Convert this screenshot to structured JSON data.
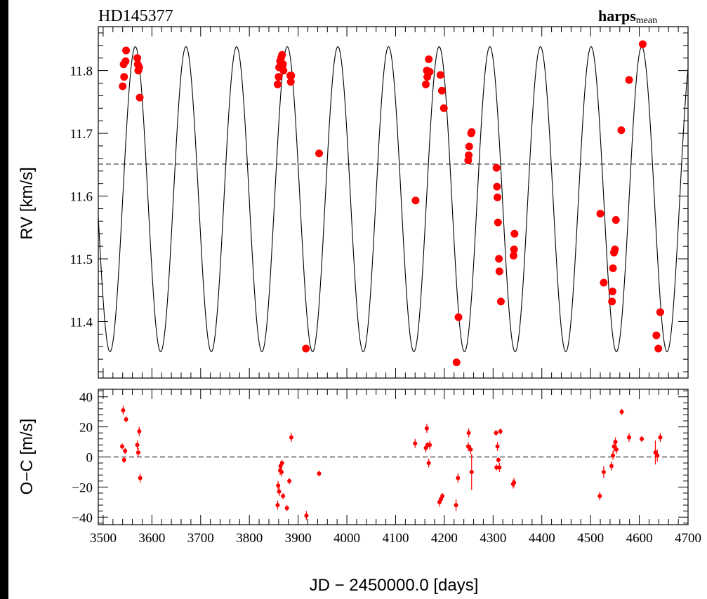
{
  "chart_data": [
    {
      "type": "scatter",
      "panel": "rv",
      "title": "HD145377",
      "label_right_main": "harps",
      "label_right_sub": "mean",
      "ylabel": "RV [km/s]",
      "xlim": [
        3490,
        4700
      ],
      "ylim": [
        11.31,
        11.87
      ],
      "yticks": [
        11.4,
        11.5,
        11.6,
        11.7,
        11.8
      ],
      "mean_line": 11.651,
      "model": {
        "period": 103.9,
        "center": 11.595,
        "semi_amplitude": 0.243,
        "peak_jd": 4605
      },
      "series": [
        {
          "points": [
            [
              3540,
              11.775
            ],
            [
              3542,
              11.81
            ],
            [
              3543,
              11.79
            ],
            [
              3546,
              11.815
            ],
            [
              3547,
              11.832
            ],
            [
              3570,
              11.82
            ],
            [
              3571,
              11.81
            ],
            [
              3572,
              11.8
            ],
            [
              3574,
              11.805
            ],
            [
              3575,
              11.757
            ],
            [
              3858,
              11.778
            ],
            [
              3860,
              11.79
            ],
            [
              3861,
              11.805
            ],
            [
              3863,
              11.815
            ],
            [
              3865,
              11.82
            ],
            [
              3867,
              11.825
            ],
            [
              3869,
              11.81
            ],
            [
              3870,
              11.8
            ],
            [
              3884,
              11.792
            ],
            [
              3885,
              11.782
            ],
            [
              3886,
              11.792
            ],
            [
              3916,
              11.357
            ],
            [
              3943,
              11.668
            ],
            [
              4141,
              11.593
            ],
            [
              4162,
              11.778
            ],
            [
              4164,
              11.8
            ],
            [
              4165,
              11.79
            ],
            [
              4168,
              11.818
            ],
            [
              4170,
              11.798
            ],
            [
              4192,
              11.793
            ],
            [
              4195,
              11.768
            ],
            [
              4199,
              11.74
            ],
            [
              4225,
              11.335
            ],
            [
              4229,
              11.407
            ],
            [
              4249,
              11.657
            ],
            [
              4250,
              11.665
            ],
            [
              4251,
              11.679
            ],
            [
              4255,
              11.7
            ],
            [
              4256,
              11.702
            ],
            [
              4307,
              11.645
            ],
            [
              4308,
              11.615
            ],
            [
              4309,
              11.598
            ],
            [
              4310,
              11.558
            ],
            [
              4312,
              11.5
            ],
            [
              4313,
              11.48
            ],
            [
              4316,
              11.432
            ],
            [
              4342,
              11.505
            ],
            [
              4343,
              11.515
            ],
            [
              4344,
              11.54
            ],
            [
              4520,
              11.572
            ],
            [
              4527,
              11.462
            ],
            [
              4544,
              11.432
            ],
            [
              4545,
              11.448
            ],
            [
              4546,
              11.485
            ],
            [
              4548,
              11.51
            ],
            [
              4550,
              11.515
            ],
            [
              4552,
              11.562
            ],
            [
              4563,
              11.705
            ],
            [
              4579,
              11.785
            ],
            [
              4607,
              11.842
            ],
            [
              4635,
              11.378
            ],
            [
              4639,
              11.357
            ],
            [
              4643,
              11.415
            ]
          ]
        }
      ]
    },
    {
      "type": "scatter",
      "panel": "residuals",
      "xlabel": "JD − 2450000.0 [days]",
      "ylabel": "O−C [m/s]",
      "xlim": [
        3490,
        4700
      ],
      "ylim": [
        -45,
        45
      ],
      "yticks": [
        -40,
        -20,
        0,
        20,
        40
      ],
      "xticks": [
        3500,
        3600,
        3700,
        3800,
        3900,
        4000,
        4100,
        4200,
        4300,
        4400,
        4500,
        4600,
        4700
      ],
      "zero_line": 0,
      "series": [
        {
          "points": [
            [
              3539,
              7,
              2
            ],
            [
              3541,
              31,
              3
            ],
            [
              3543,
              -2,
              2
            ],
            [
              3545,
              4,
              2
            ],
            [
              3547,
              25,
              2
            ],
            [
              3570,
              8,
              3
            ],
            [
              3572,
              3,
              3
            ],
            [
              3574,
              17,
              3
            ],
            [
              3576,
              -14,
              3
            ],
            [
              3858,
              -32,
              3
            ],
            [
              3859,
              -19,
              3
            ],
            [
              3861,
              -23,
              3
            ],
            [
              3863,
              -9,
              3
            ],
            [
              3864,
              -6,
              3
            ],
            [
              3866,
              -10,
              3
            ],
            [
              3867,
              -4,
              2
            ],
            [
              3869,
              -26,
              2
            ],
            [
              3877,
              -34,
              2
            ],
            [
              3882,
              -16,
              2
            ],
            [
              3886,
              13,
              3
            ],
            [
              3917,
              -39,
              3
            ],
            [
              3943,
              -11,
              2
            ],
            [
              4140,
              9,
              3
            ],
            [
              4162,
              6,
              3
            ],
            [
              4164,
              19,
              3
            ],
            [
              4166,
              8,
              2
            ],
            [
              4168,
              -4,
              3
            ],
            [
              4170,
              8,
              3
            ],
            [
              4190,
              -30,
              3
            ],
            [
              4193,
              -28,
              2
            ],
            [
              4196,
              -26,
              2
            ],
            [
              4224,
              -32,
              4
            ],
            [
              4228,
              -14,
              3
            ],
            [
              4249,
              7,
              3
            ],
            [
              4250,
              16,
              3
            ],
            [
              4254,
              5,
              3
            ],
            [
              4256,
              -10,
              12
            ],
            [
              4306,
              16,
              2
            ],
            [
              4307,
              -7,
              2
            ],
            [
              4309,
              7,
              3
            ],
            [
              4311,
              -2,
              2
            ],
            [
              4313,
              -7,
              3
            ],
            [
              4315,
              17,
              2
            ],
            [
              4341,
              -18,
              3
            ],
            [
              4343,
              -17,
              3
            ],
            [
              4519,
              -26,
              3
            ],
            [
              4527,
              -10,
              4
            ],
            [
              4543,
              -6,
              3
            ],
            [
              4546,
              1,
              3
            ],
            [
              4548,
              7,
              4
            ],
            [
              4551,
              10,
              3
            ],
            [
              4553,
              5,
              3
            ],
            [
              4564,
              30,
              2
            ],
            [
              4579,
              13,
              3
            ],
            [
              4605,
              12,
              2
            ],
            [
              4633,
              3,
              8
            ],
            [
              4637,
              1,
              4
            ],
            [
              4643,
              13,
              3
            ]
          ]
        }
      ]
    }
  ]
}
